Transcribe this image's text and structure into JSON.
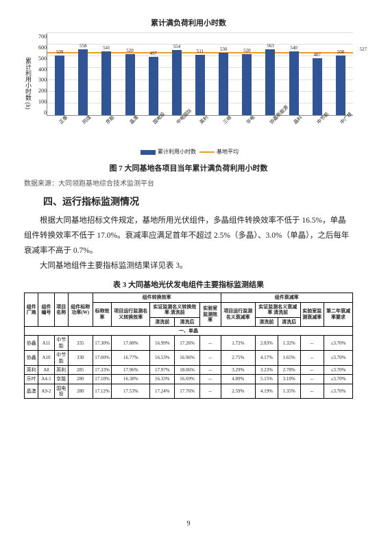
{
  "chart": {
    "title": "累计满负荷利用小时数",
    "ylabel": "累计利用小时数 (h)",
    "ylim": [
      0,
      700
    ],
    "yticks": [
      0,
      100,
      200,
      300,
      400,
      500,
      600,
      700
    ],
    "bar_color": "#2f5597",
    "avg_color": "#ed9b2d",
    "avg": 527,
    "cats": [
      "正泰",
      "同煤",
      "京能",
      "晶澳",
      "国电投",
      "中电国际",
      "英利",
      "三峡",
      "华电",
      "协鑫新能源",
      "晶科",
      "中节能",
      "中广核"
    ],
    "vals": [
      509,
      558,
      541,
      520,
      497,
      554,
      511,
      530,
      520,
      563,
      540,
      487,
      508
    ],
    "legend_bar": "累计利用小时数",
    "legend_avg": "基地平均"
  },
  "fig_caption": "图 7  大同基地各项目当年累计满负荷利用小时数",
  "source": "数据来源：大同领跑基地综合技术监测平台",
  "sec_heading": "四、运行指标监测情况",
  "p1": "根据大同基地招标文件规定，基地所用光伏组件，多晶组件转换效率不低于 16.5%，单晶组件转换效率不低于 17.0%。衰减率应满足首年不超过 2.5%（多晶）、3.0%（单晶），之后每年衰减率不高于 0.7%。",
  "p2": "大同基地组件主要指标监测结果详见表 3。",
  "tbl_caption": "表 3  大同基地光伏发电组件主要指标监测结果",
  "thead": {
    "g1": "组件转换效率",
    "g2": "组件衰减率",
    "c0": "组件厂商",
    "c1": "组件编号",
    "c2": "项目名称",
    "c3": "组件标称功率(W)",
    "c4": "标称效率",
    "c5": "项目运行监测名义转换效率",
    "c6": "实证监测名义转换效率 清洗前",
    "c7": "清洗后",
    "c8": "实验室监测效率",
    "c9": "项目运行监测名义衰减率",
    "c10": "实证监测名义衰减率 清洗前",
    "c11": "清洗后",
    "c12": "实验室监测衰减率",
    "c13": "第二年衰减率要求",
    "sec": "一、单晶"
  },
  "rows": [
    [
      "协鑫",
      "A11",
      "中节能",
      "335",
      "17.30%",
      "17.08%",
      "16.99%",
      "17.26%",
      "--",
      "1.72%",
      "2.83%",
      "1.32%",
      "--",
      "≤3.70%"
    ],
    [
      "协鑫",
      "A10",
      "中节能",
      "330",
      "17.00%",
      "16.77%",
      "16.53%",
      "16.96%",
      "--",
      "2.75%",
      "4.17%",
      "1.65%",
      "--",
      "≤3.70%"
    ],
    [
      "英利",
      "A8",
      "英利",
      "285",
      "17.33%",
      "17.96%",
      "17.97%",
      "18.06%",
      "--",
      "3.29%",
      "3.23%",
      "2.78%",
      "--",
      "≤3.70%"
    ],
    [
      "乐叶",
      "A4-1",
      "京能",
      "280",
      "17.10%",
      "16.38%",
      "16.33%",
      "16.69%",
      "--",
      "4.89%",
      "5.15%",
      "3.10%",
      "--",
      "≤3.70%"
    ],
    [
      "晶澳",
      "A9-2",
      "国电投",
      "280",
      "17.12%",
      "17.53%",
      "17.24%",
      "17.76%",
      "--",
      "2.59%",
      "4.19%",
      "1.35%",
      "--",
      "≤3.70%"
    ]
  ],
  "pagenum": "9"
}
